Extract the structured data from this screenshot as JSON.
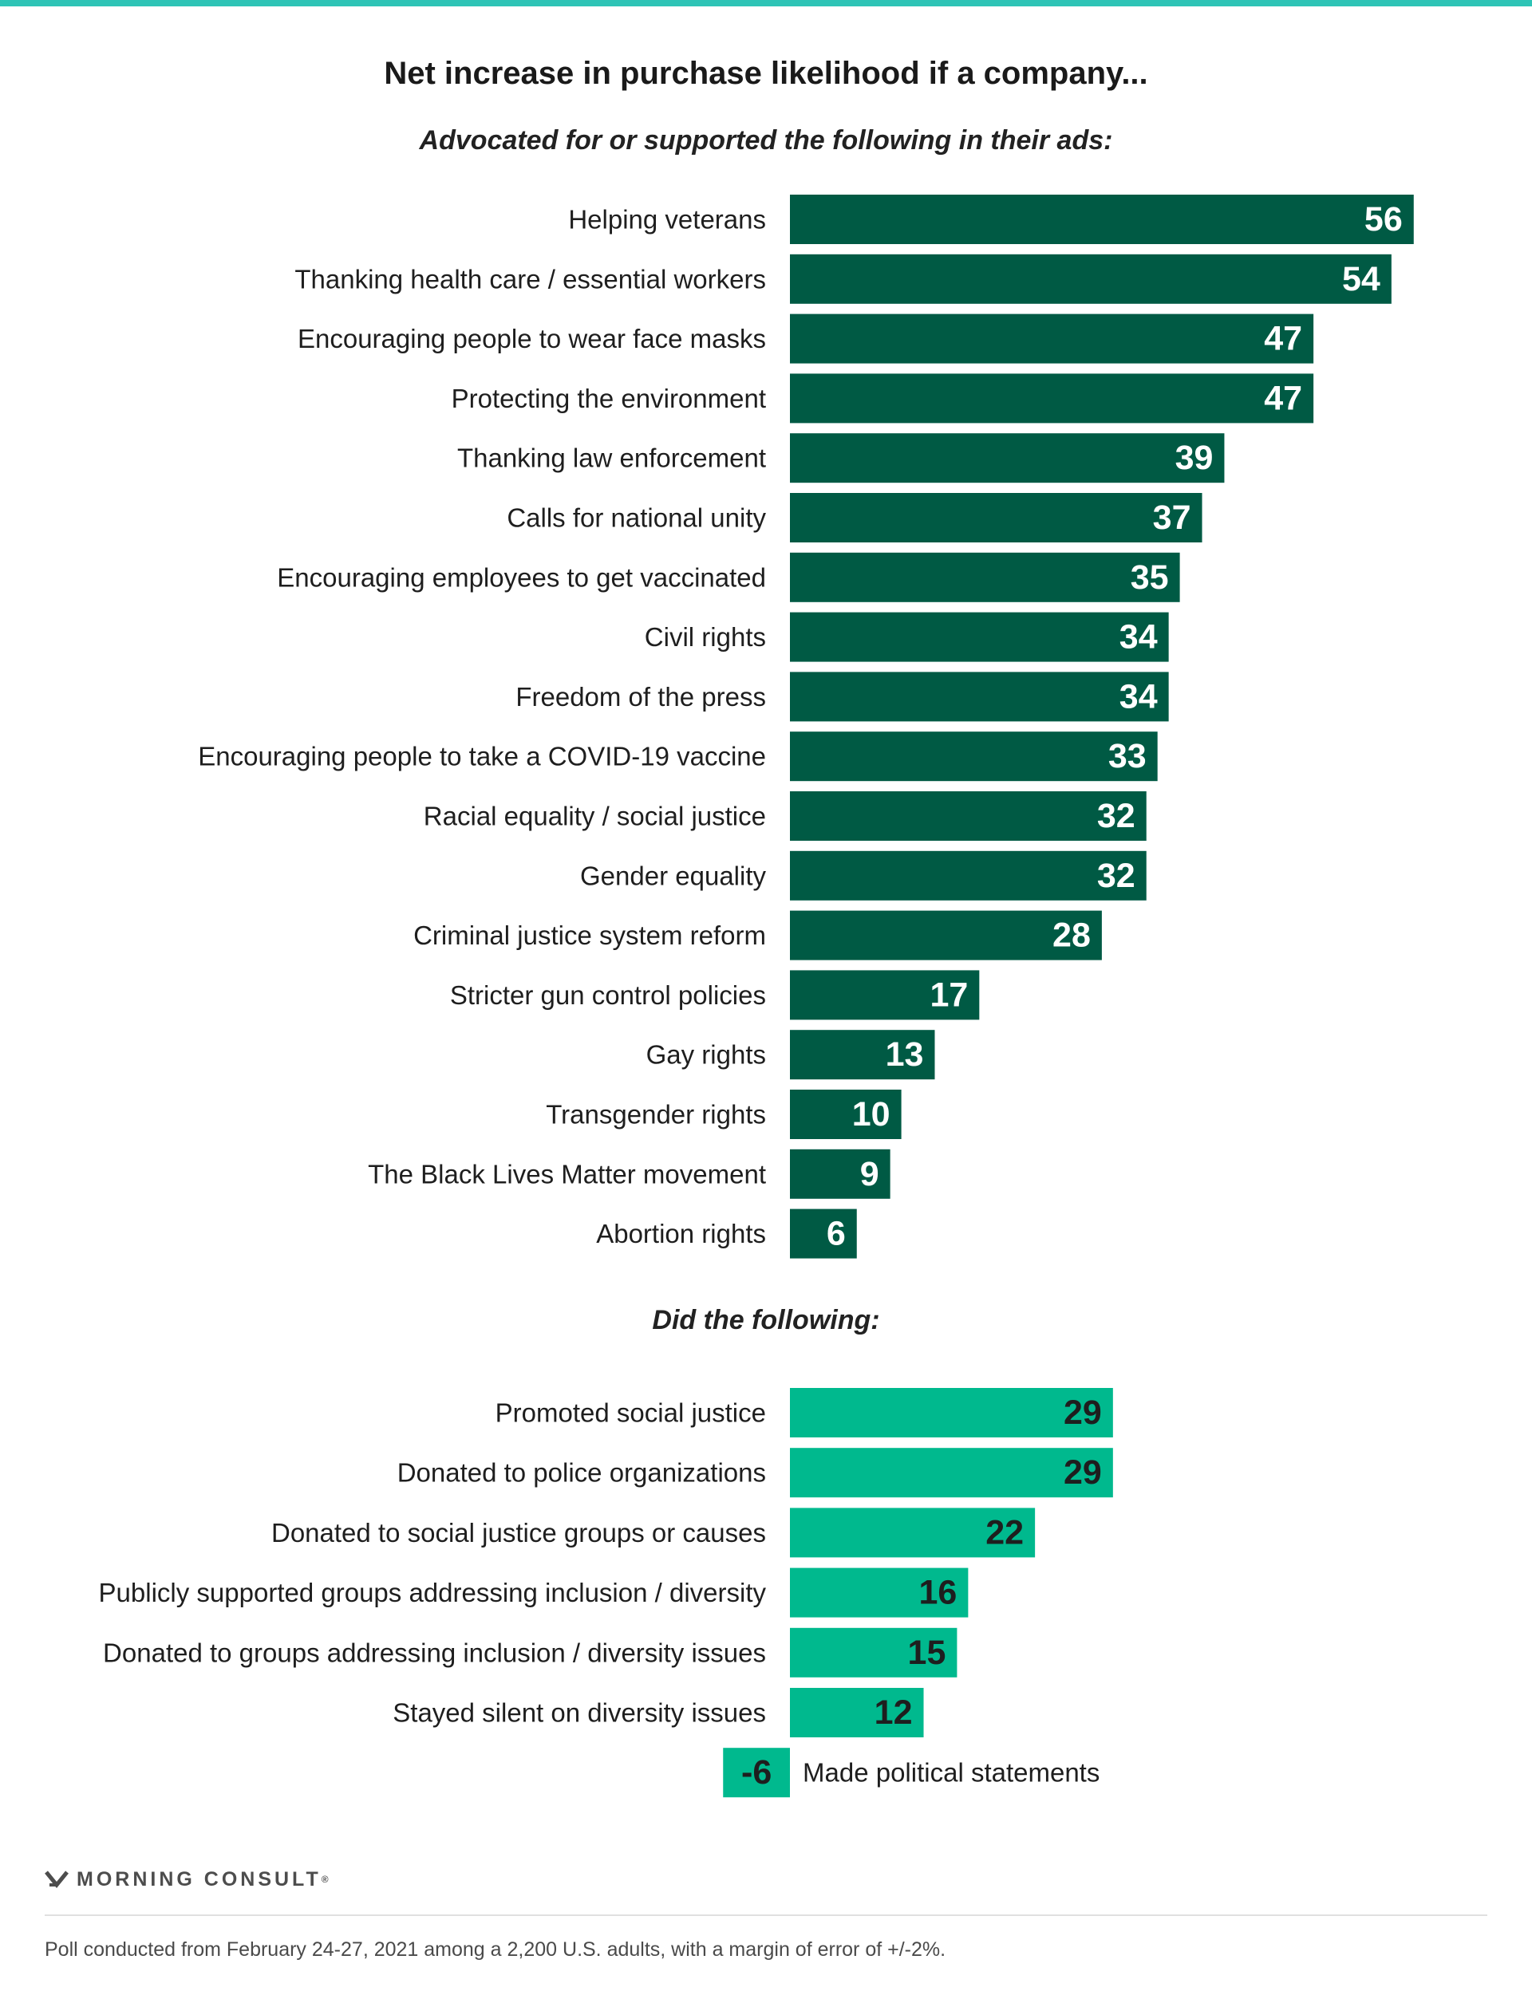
{
  "header": {
    "title": "Net increase in purchase likelihood if a company..."
  },
  "colors": {
    "accent_rule": "#2ec4b6",
    "dark_bar": "#005a44",
    "light_bar": "#00b98e",
    "dark_value_text": "#ffffff",
    "light_value_text": "#1e1e1e"
  },
  "chart_data": [
    {
      "type": "bar",
      "orientation": "horizontal",
      "subtitle": "Advocated for or supported the following in their ads:",
      "categories": [
        "Helping veterans",
        "Thanking health care / essential workers",
        "Encouraging people to wear face masks",
        "Protecting the environment",
        "Thanking law enforcement",
        "Calls for national unity",
        "Encouraging employees to get vaccinated",
        "Civil rights",
        "Freedom of the press",
        "Encouraging people to take a COVID-19 vaccine",
        "Racial equality / social justice",
        "Gender equality",
        "Criminal justice system reform",
        "Stricter gun control policies",
        "Gay rights",
        "Transgender rights",
        "The Black Lives Matter movement",
        "Abortion rights"
      ],
      "values": [
        56,
        54,
        47,
        47,
        39,
        37,
        35,
        34,
        34,
        33,
        32,
        32,
        28,
        17,
        13,
        10,
        9,
        6
      ],
      "xlim": [
        -6,
        56
      ],
      "data_labels": true,
      "grid": false
    },
    {
      "type": "bar",
      "orientation": "horizontal",
      "subtitle": "Did the following:",
      "categories": [
        "Promoted social justice",
        "Donated to police organizations",
        "Donated to social justice groups or causes",
        "Publicly supported groups addressing inclusion / diversity",
        "Donated to groups addressing inclusion / diversity issues",
        "Stayed silent on diversity issues",
        "Made political statements"
      ],
      "values": [
        29,
        29,
        22,
        16,
        15,
        12,
        -6
      ],
      "xlim": [
        -6,
        56
      ],
      "data_labels": true,
      "grid": false
    }
  ],
  "branding": {
    "logo_text": "MORNING CONSULT",
    "logo_mark": "®"
  },
  "footer": {
    "note": "Poll conducted from February 24-27, 2021 among a 2,200 U.S. adults, with a margin of error of +/-2%."
  }
}
